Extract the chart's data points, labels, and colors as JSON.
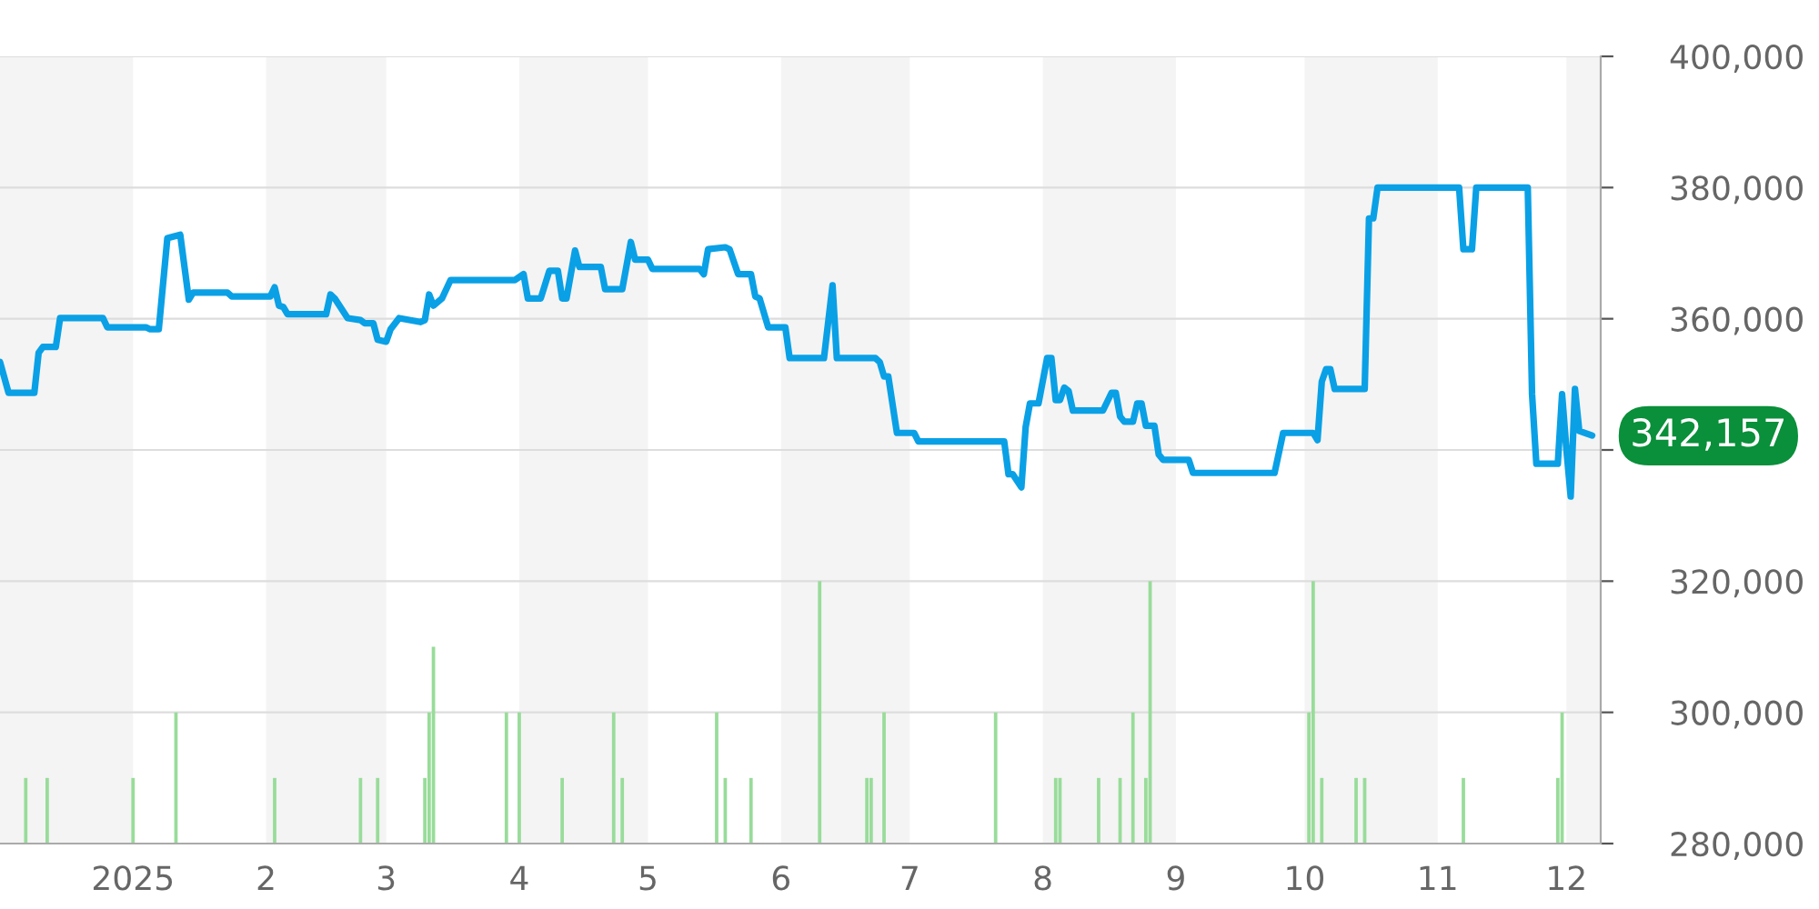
{
  "chart_data": {
    "type": "line",
    "series": [
      {
        "type": "bar",
        "color": "#98dc9a",
        "x": [
          "2024-12-07",
          "2024-12-12",
          "2025-01-01",
          "2025-01-11",
          "2025-02-03",
          "2025-02-23",
          "2025-02-27",
          "2025-03-10",
          "2025-03-11",
          "2025-03-12",
          "2025-03-29",
          "2025-04-01",
          "2025-04-11",
          "2025-04-23",
          "2025-04-25",
          "2025-05-17",
          "2025-05-19",
          "2025-05-25",
          "2025-06-10",
          "2025-06-21",
          "2025-06-22",
          "2025-06-25",
          "2025-07-21",
          "2025-08-04",
          "2025-08-05",
          "2025-08-14",
          "2025-08-19",
          "2025-08-22",
          "2025-08-25",
          "2025-08-26",
          "2025-10-02",
          "2025-10-03",
          "2025-10-05",
          "2025-10-13",
          "2025-10-15",
          "2025-11-07",
          "2025-11-29",
          "2025-11-30"
        ],
        "base": [
          280000,
          280000,
          280000,
          280000,
          280000,
          280000,
          280000,
          280000,
          280000,
          280000,
          280000,
          280000,
          280000,
          280000,
          280000,
          280000,
          280000,
          280000,
          280000,
          280000,
          280000,
          280000,
          280000,
          280000,
          280000,
          280000,
          280000,
          280000,
          280000,
          280000,
          280000,
          280000,
          280000,
          280000,
          280000,
          280000,
          280000,
          280000
        ],
        "values": [
          10000,
          10000,
          10000,
          20000,
          10000,
          10000,
          10000,
          10000,
          20000,
          30000,
          20000,
          20000,
          10000,
          20000,
          10000,
          20000,
          10000,
          10000,
          40000,
          10000,
          10000,
          20000,
          20000,
          10000,
          10000,
          10000,
          10000,
          20000,
          10000,
          40000,
          20000,
          40000,
          10000,
          10000,
          10000,
          10000,
          10000,
          20000
        ]
      },
      {
        "color": "#0aa0e6",
        "x": [
          "2024-12-01",
          "2024-12-03",
          "2024-12-09",
          "2024-12-10",
          "2024-12-11",
          "2024-12-14",
          "2024-12-15",
          "2024-12-25",
          "2024-12-26",
          "2025-01-04",
          "2025-01-05",
          "2025-01-07",
          "2025-01-09",
          "2025-01-12",
          "2025-01-14",
          "2025-01-15",
          "2025-01-23",
          "2025-01-24",
          "2025-02-02",
          "2025-02-03",
          "2025-02-04",
          "2025-02-05",
          "2025-02-06",
          "2025-02-15",
          "2025-02-16",
          "2025-02-17",
          "2025-02-20",
          "2025-02-23",
          "2025-02-24",
          "2025-02-26",
          "2025-02-27",
          "2025-03-01",
          "2025-03-02",
          "2025-03-04",
          "2025-03-09",
          "2025-03-10",
          "2025-03-11",
          "2025-03-12",
          "2025-03-14",
          "2025-03-16",
          "2025-03-31",
          "2025-04-02",
          "2025-04-03",
          "2025-04-06",
          "2025-04-08",
          "2025-04-10",
          "2025-04-11",
          "2025-04-12",
          "2025-04-14",
          "2025-04-15",
          "2025-04-20",
          "2025-04-21",
          "2025-04-25",
          "2025-04-27",
          "2025-04-28",
          "2025-05-01",
          "2025-05-02",
          "2025-05-13",
          "2025-05-14",
          "2025-05-15",
          "2025-05-19",
          "2025-05-20",
          "2025-05-22",
          "2025-05-25",
          "2025-05-26",
          "2025-05-27",
          "2025-05-29",
          "2025-06-02",
          "2025-06-03",
          "2025-06-11",
          "2025-06-13",
          "2025-06-14",
          "2025-06-23",
          "2025-06-24",
          "2025-06-25",
          "2025-06-26",
          "2025-06-28",
          "2025-07-02",
          "2025-07-03",
          "2025-07-23",
          "2025-07-24",
          "2025-07-25",
          "2025-07-27",
          "2025-07-28",
          "2025-07-29",
          "2025-07-31",
          "2025-08-02",
          "2025-08-03",
          "2025-08-04",
          "2025-08-05",
          "2025-08-06",
          "2025-08-07",
          "2025-08-08",
          "2025-08-15",
          "2025-08-17",
          "2025-08-18",
          "2025-08-19",
          "2025-08-20",
          "2025-08-22",
          "2025-08-23",
          "2025-08-24",
          "2025-08-25",
          "2025-08-27",
          "2025-08-28",
          "2025-08-29",
          "2025-09-04",
          "2025-09-05",
          "2025-09-24",
          "2025-09-26",
          "2025-10-03",
          "2025-10-04",
          "2025-10-05",
          "2025-10-06",
          "2025-10-07",
          "2025-10-08",
          "2025-10-15",
          "2025-10-16",
          "2025-10-17",
          "2025-10-18",
          "2025-11-06",
          "2025-11-07",
          "2025-11-09",
          "2025-11-10",
          "2025-11-22",
          "2025-11-23",
          "2025-11-24",
          "2025-11-29",
          "2025-11-30",
          "2025-12-01",
          "2025-12-02",
          "2025-12-03",
          "2025-12-04",
          "2025-12-07"
        ],
        "values": [
          353400,
          348700,
          348700,
          354800,
          355700,
          355700,
          360100,
          360100,
          358700,
          358700,
          358400,
          358400,
          372300,
          372800,
          362900,
          364000,
          364000,
          363400,
          363400,
          364800,
          362000,
          361800,
          360700,
          360700,
          363700,
          363100,
          360100,
          359800,
          359300,
          359300,
          356800,
          356500,
          358400,
          360100,
          359500,
          359800,
          363700,
          362000,
          363100,
          365900,
          365900,
          366800,
          363100,
          363100,
          367300,
          367300,
          363100,
          363100,
          370400,
          367900,
          367900,
          364500,
          364500,
          371700,
          369000,
          369000,
          367600,
          367600,
          366800,
          370600,
          370900,
          370600,
          366800,
          366800,
          363400,
          363100,
          358700,
          358700,
          354000,
          354000,
          365100,
          354000,
          354000,
          353400,
          351200,
          351200,
          342600,
          342600,
          341300,
          341300,
          336300,
          336300,
          334300,
          343500,
          347100,
          347100,
          354000,
          354000,
          347600,
          347600,
          349500,
          349000,
          346000,
          346000,
          348700,
          348700,
          345100,
          344300,
          344300,
          347100,
          347100,
          343700,
          343700,
          339300,
          338500,
          338500,
          336500,
          336500,
          342600,
          342600,
          341500,
          350400,
          352300,
          352300,
          349300,
          349300,
          375300,
          375300,
          380000,
          380000,
          370600,
          370600,
          380000,
          380000,
          348500,
          337900,
          337900,
          348500,
          340100,
          332900,
          349300,
          342900,
          342200
        ]
      }
    ],
    "xlim": [
      "2024-12-01",
      "2025-12-09"
    ],
    "xticks": [
      {
        "value": "2025-01-01",
        "label": "2025"
      },
      {
        "value": "2025-02-01",
        "label": "2"
      },
      {
        "value": "2025-03-01",
        "label": "3"
      },
      {
        "value": "2025-04-01",
        "label": "4"
      },
      {
        "value": "2025-05-01",
        "label": "5"
      },
      {
        "value": "2025-06-01",
        "label": "6"
      },
      {
        "value": "2025-07-01",
        "label": "7"
      },
      {
        "value": "2025-08-01",
        "label": "8"
      },
      {
        "value": "2025-09-01",
        "label": "9"
      },
      {
        "value": "2025-10-01",
        "label": "10"
      },
      {
        "value": "2025-11-01",
        "label": "11"
      },
      {
        "value": "2025-12-01",
        "label": "12"
      }
    ],
    "ylim": [
      280000,
      400000
    ],
    "yticks": [
      {
        "value": 280000,
        "label": "280,000"
      },
      {
        "value": 300000,
        "label": "300,000"
      },
      {
        "value": 320000,
        "label": "320,000"
      },
      {
        "value": 340000,
        "label": null
      },
      {
        "value": 360000,
        "label": "360,000"
      },
      {
        "value": 380000,
        "label": "380,000"
      },
      {
        "value": 400000,
        "label": "400,000"
      }
    ],
    "grid": "y",
    "bands": [
      {
        "axis": "x",
        "from": "2024-12-01",
        "to": "2025-01-01",
        "color": "#f4f4f4"
      },
      {
        "axis": "x",
        "from": "2025-02-01",
        "to": "2025-03-01",
        "color": "#f4f4f4"
      },
      {
        "axis": "x",
        "from": "2025-04-01",
        "to": "2025-05-01",
        "color": "#f4f4f4"
      },
      {
        "axis": "x",
        "from": "2025-06-01",
        "to": "2025-07-01",
        "color": "#f4f4f4"
      },
      {
        "axis": "x",
        "from": "2025-08-01",
        "to": "2025-09-01",
        "color": "#f4f4f4"
      },
      {
        "axis": "x",
        "from": "2025-10-01",
        "to": "2025-11-01",
        "color": "#f4f4f4"
      },
      {
        "axis": "x",
        "from": "2025-12-01",
        "to": "2025-12-09",
        "color": "#f4f4f4"
      }
    ],
    "annotations": [
      {
        "text": "342,157",
        "x": "2025-12-07",
        "y": 342157
      }
    ]
  }
}
